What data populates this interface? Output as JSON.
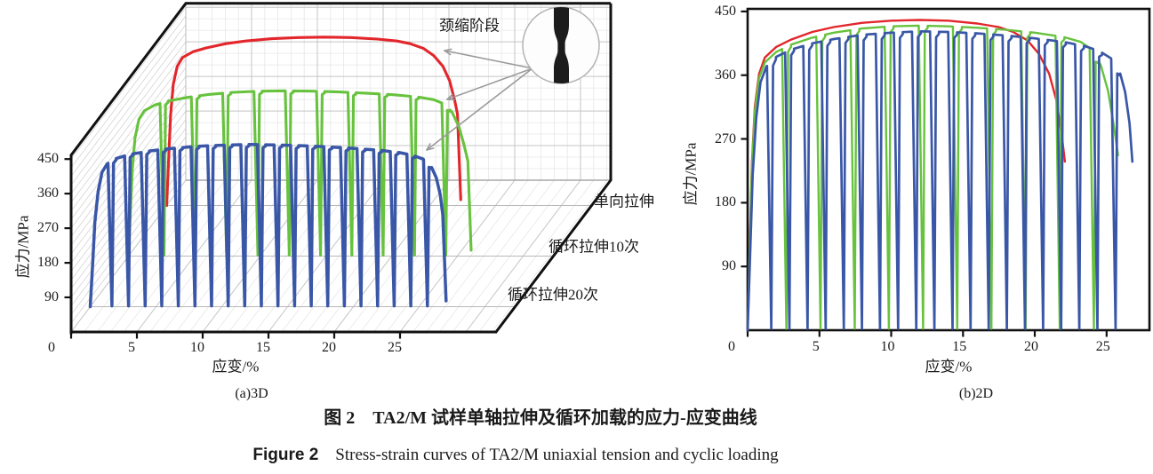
{
  "figure": {
    "caption_zh_label": "图 2",
    "caption_zh_text": "TA2/M 试样单轴拉伸及循环加载的应力-应变曲线",
    "caption_en_label": "Figure 2",
    "caption_en_text": "Stress-strain curves of TA2/M uniaxial tension and cyclic loading",
    "subcaption_a": "(a)3D",
    "subcaption_b": "(b)2D"
  },
  "axes": {
    "stress_label": "应力/MPa",
    "strain_label": "应变/%",
    "stress_ticks": [
      90,
      180,
      270,
      360,
      450
    ],
    "strain_ticks": [
      0,
      5,
      10,
      15,
      20,
      25
    ]
  },
  "annotations": {
    "necking_label": "颈缩阶段",
    "series_labels": [
      "单向拉伸",
      "循环拉伸10次",
      "循环拉伸20次"
    ],
    "inset": "necked-specimen-photo"
  },
  "colors": {
    "uniaxial": "#e2262b",
    "cyclic10": "#67c23d",
    "cyclic20": "#3a57a7",
    "frame": "#111111",
    "grid_major": "#c6c6c6",
    "grid_minor": "#e7e7e7",
    "hatch": "#d4d4d4",
    "floor_baseline": "#b8b8b8",
    "arrow": "#9a9a9a"
  },
  "chart_data": {
    "type": "line",
    "panels": [
      {
        "id": "3d",
        "title": "(a)3D",
        "xlabel": "应变/%",
        "ylabel": "应力/MPa",
        "xlim": [
          0,
          32
        ],
        "ylim": [
          0,
          460
        ],
        "grid": true,
        "note": "waterfall projection, three depth slots front-to-back: cyclic20, cyclic10, uniaxial"
      },
      {
        "id": "2d",
        "title": "(b)2D",
        "xlabel": "应变/%",
        "ylabel": "应力/MPa",
        "xlim": [
          0,
          28
        ],
        "ylim": [
          0,
          454
        ],
        "grid": false
      }
    ],
    "series": [
      {
        "name": "单向拉伸",
        "color": "#e2262b",
        "depth_slot": 2,
        "cycles": 0,
        "envelope": [
          [
            0,
            0
          ],
          [
            0.15,
            120
          ],
          [
            0.3,
            235
          ],
          [
            0.5,
            315
          ],
          [
            0.8,
            362
          ],
          [
            1.2,
            385
          ],
          [
            2,
            400
          ],
          [
            3,
            410
          ],
          [
            4.5,
            421
          ],
          [
            6,
            428
          ],
          [
            8,
            434
          ],
          [
            10,
            437
          ],
          [
            12,
            438
          ],
          [
            14,
            437
          ],
          [
            16,
            433
          ],
          [
            17.5,
            428
          ],
          [
            18.5,
            421
          ],
          [
            19.5,
            409
          ],
          [
            20.3,
            390
          ],
          [
            21,
            362
          ],
          [
            21.5,
            325
          ],
          [
            21.9,
            272
          ],
          [
            22.1,
            238
          ]
        ],
        "fracture_end": [
          22.35,
          15
        ]
      },
      {
        "name": "循环拉伸10次",
        "color": "#67c23d",
        "depth_slot": 1,
        "cycles": 10,
        "cycle_start": 2.4,
        "cycle_spacing": 2.38,
        "envelope": [
          [
            0,
            0
          ],
          [
            0.15,
            115
          ],
          [
            0.3,
            228
          ],
          [
            0.5,
            308
          ],
          [
            0.8,
            356
          ],
          [
            1.2,
            378
          ],
          [
            2,
            393
          ],
          [
            3,
            403
          ],
          [
            4.5,
            413
          ],
          [
            6,
            420
          ],
          [
            8,
            426
          ],
          [
            10,
            429
          ],
          [
            12,
            430
          ],
          [
            14,
            429
          ],
          [
            16,
            427
          ],
          [
            18,
            424
          ],
          [
            20,
            420
          ],
          [
            22,
            414
          ],
          [
            23.2,
            407
          ],
          [
            24,
            396
          ],
          [
            24.6,
            374
          ],
          [
            25.1,
            338
          ],
          [
            25.5,
            290
          ],
          [
            25.8,
            247
          ]
        ],
        "fracture_end": [
          26.05,
          15
        ]
      },
      {
        "name": "循环拉伸20次",
        "color": "#3a57a7",
        "depth_slot": 0,
        "cycles": 20,
        "cycle_start": 1.35,
        "cycle_spacing": 1.262,
        "envelope": [
          [
            0,
            0
          ],
          [
            0.18,
            110
          ],
          [
            0.35,
            220
          ],
          [
            0.6,
            300
          ],
          [
            0.9,
            350
          ],
          [
            1.3,
            372
          ],
          [
            2,
            386
          ],
          [
            3,
            396
          ],
          [
            4.5,
            405
          ],
          [
            6,
            411
          ],
          [
            8,
            417
          ],
          [
            10,
            420
          ],
          [
            12,
            422
          ],
          [
            14,
            421
          ],
          [
            16,
            419
          ],
          [
            18,
            416
          ],
          [
            20,
            412
          ],
          [
            22,
            407
          ],
          [
            23.5,
            401
          ],
          [
            24.5,
            394
          ],
          [
            25.3,
            384
          ],
          [
            25.9,
            366
          ],
          [
            26.3,
            336
          ],
          [
            26.6,
            292
          ],
          [
            26.8,
            238
          ]
        ],
        "fracture_end": [
          27.05,
          15
        ]
      }
    ]
  }
}
